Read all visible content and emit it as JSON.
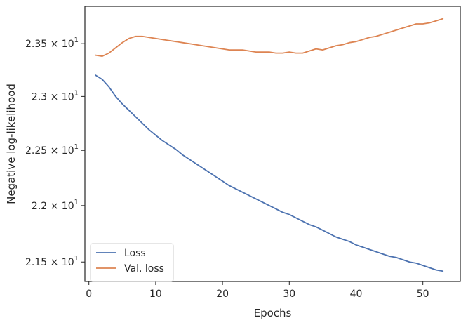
{
  "chart_data": {
    "type": "line",
    "title": "",
    "xlabel": "Epochs",
    "ylabel": "Negative log-likelihood",
    "xlim": [
      -0.6,
      55.6
    ],
    "ylim": [
      21.33,
      23.86
    ],
    "yscale": "log",
    "grid": false,
    "legend_position": "bottom-left",
    "x_ticks": [
      {
        "value": 0,
        "label": "0"
      },
      {
        "value": 10,
        "label": "10"
      },
      {
        "value": 20,
        "label": "20"
      },
      {
        "value": 30,
        "label": "30"
      },
      {
        "value": 40,
        "label": "40"
      },
      {
        "value": 50,
        "label": "50"
      }
    ],
    "y_ticks": [
      {
        "value": 21.5,
        "mantissa": "2.15",
        "base": "10",
        "exp": "1"
      },
      {
        "value": 22.0,
        "mantissa": "2.2",
        "base": "10",
        "exp": "1"
      },
      {
        "value": 22.5,
        "mantissa": "2.25",
        "base": "10",
        "exp": "1"
      },
      {
        "value": 23.0,
        "mantissa": "2.3",
        "base": "10",
        "exp": "1"
      },
      {
        "value": 23.5,
        "mantissa": "2.35",
        "base": "10",
        "exp": "1"
      }
    ],
    "x": [
      1,
      2,
      3,
      4,
      5,
      6,
      7,
      8,
      9,
      10,
      11,
      12,
      13,
      14,
      15,
      16,
      17,
      18,
      19,
      20,
      21,
      22,
      23,
      24,
      25,
      26,
      27,
      28,
      29,
      30,
      31,
      32,
      33,
      34,
      35,
      36,
      37,
      38,
      39,
      40,
      41,
      42,
      43,
      44,
      45,
      46,
      47,
      48,
      49,
      50,
      51,
      52,
      53
    ],
    "series": [
      {
        "name": "Loss",
        "color": "#4c72b0",
        "values": [
          23.2,
          23.16,
          23.09,
          23.0,
          22.93,
          22.87,
          22.81,
          22.75,
          22.69,
          22.64,
          22.59,
          22.55,
          22.51,
          22.46,
          22.42,
          22.38,
          22.34,
          22.3,
          22.26,
          22.22,
          22.18,
          22.15,
          22.12,
          22.09,
          22.06,
          22.03,
          22.0,
          21.97,
          21.94,
          21.92,
          21.89,
          21.86,
          21.83,
          21.81,
          21.78,
          21.75,
          21.72,
          21.7,
          21.68,
          21.65,
          21.63,
          21.61,
          21.59,
          21.57,
          21.55,
          21.54,
          21.52,
          21.5,
          21.49,
          21.47,
          21.45,
          21.43,
          21.42
        ]
      },
      {
        "name": "Val. loss",
        "color": "#dd8452",
        "values": [
          23.39,
          23.38,
          23.41,
          23.46,
          23.51,
          23.55,
          23.57,
          23.57,
          23.56,
          23.55,
          23.54,
          23.53,
          23.52,
          23.51,
          23.5,
          23.49,
          23.48,
          23.47,
          23.46,
          23.45,
          23.44,
          23.44,
          23.44,
          23.43,
          23.42,
          23.42,
          23.42,
          23.41,
          23.41,
          23.42,
          23.41,
          23.41,
          23.43,
          23.45,
          23.44,
          23.46,
          23.48,
          23.49,
          23.51,
          23.52,
          23.54,
          23.56,
          23.57,
          23.59,
          23.61,
          23.63,
          23.65,
          23.67,
          23.69,
          23.69,
          23.7,
          23.72,
          23.74
        ]
      }
    ]
  }
}
